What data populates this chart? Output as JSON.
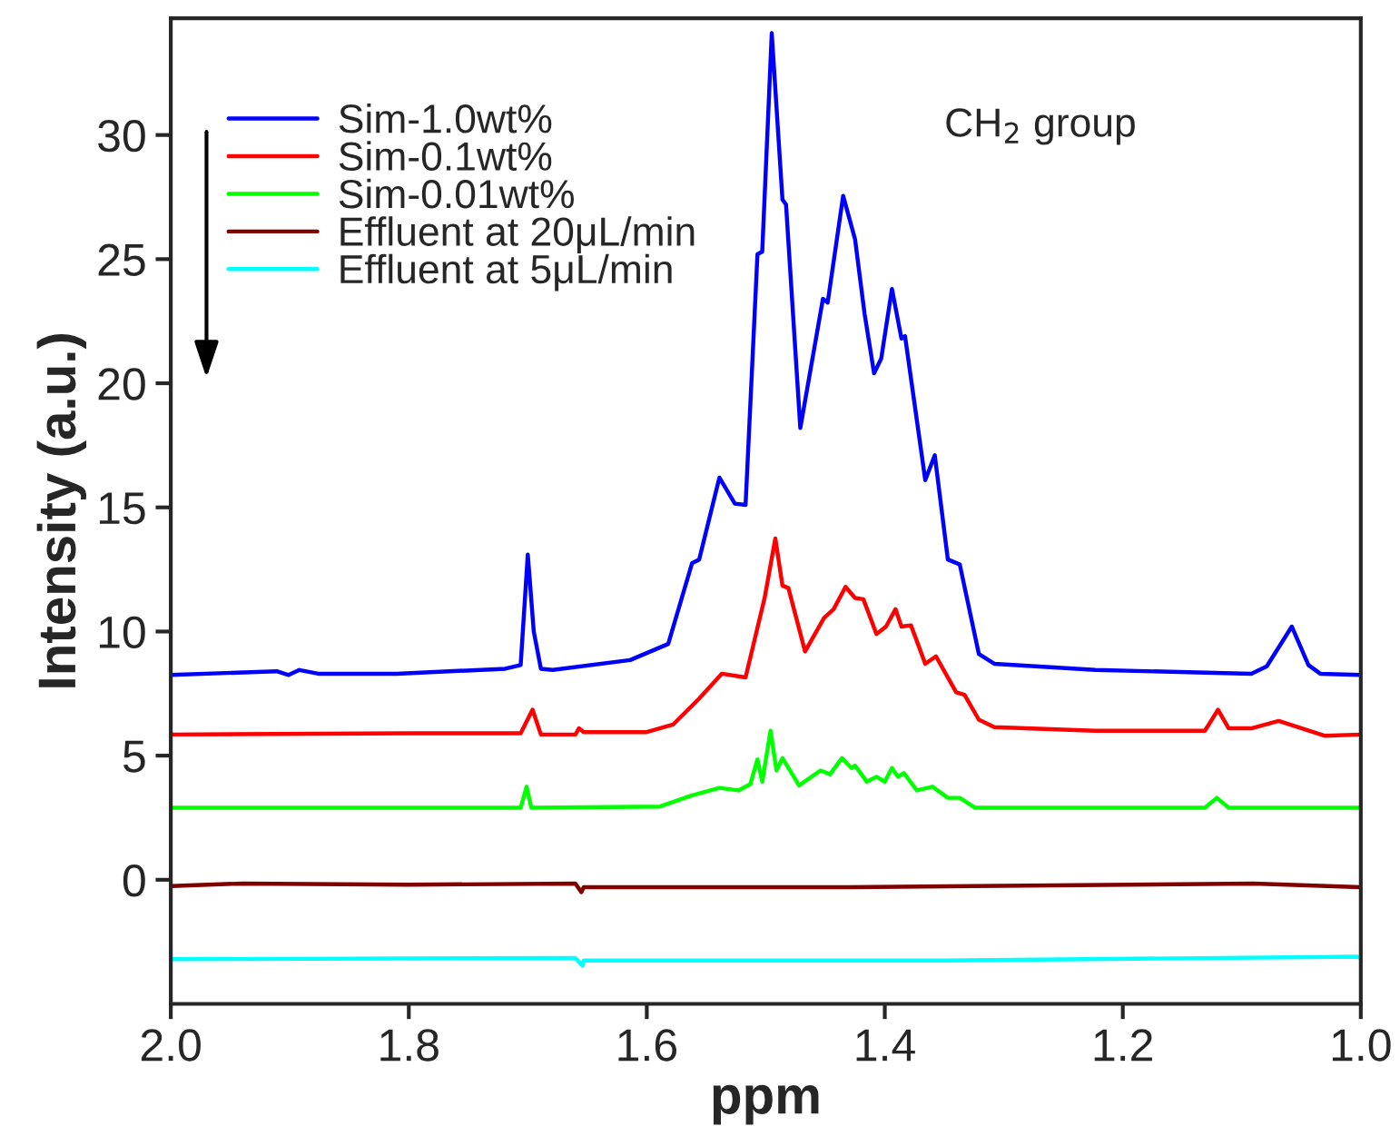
{
  "chart_data": {
    "type": "line",
    "xlabel": "ppm",
    "ylabel": "Intensity (a.u.)",
    "annotations": [
      "CH$_{2}$ group"
    ],
    "xlim": [
      2.0,
      1.0
    ],
    "xticks": [
      {
        "value": 2.0,
        "label": "2.0"
      },
      1.8,
      1.6,
      1.4,
      1.2,
      {
        "value": 1.0,
        "label": "1.0"
      }
    ],
    "ylim": [
      -5,
      34.7
    ],
    "yticks": [
      0,
      5,
      10,
      15,
      20,
      25,
      30
    ],
    "grid": false,
    "legend": "top left",
    "line_style": "solid",
    "marker": "none",
    "series": [
      {
        "name": "Sim-1.0wt%",
        "color": "#0000ff",
        "x": [
          2.0,
          1.911,
          1.901,
          1.892,
          1.876,
          1.81,
          1.719,
          1.706,
          1.7,
          1.695,
          1.689,
          1.679,
          1.614,
          1.582,
          1.562,
          1.556,
          1.539,
          1.526,
          1.517,
          1.507,
          1.503,
          1.495,
          1.486,
          1.483,
          1.471,
          1.452,
          1.448,
          1.435,
          1.425,
          1.417,
          1.409,
          1.403,
          1.394,
          1.386,
          1.383,
          1.366,
          1.358,
          1.347,
          1.337,
          1.321,
          1.308,
          1.223,
          1.092,
          1.079,
          1.058,
          1.044,
          1.034,
          1.0
        ],
        "values": [
          8.25,
          8.4,
          8.25,
          8.45,
          8.3,
          8.3,
          8.5,
          8.65,
          13.1,
          10.0,
          8.5,
          8.45,
          8.85,
          9.5,
          12.75,
          12.9,
          16.2,
          15.15,
          15.1,
          25.2,
          25.3,
          34.1,
          27.4,
          27.2,
          18.2,
          23.4,
          23.25,
          27.55,
          25.8,
          22.8,
          20.4,
          21.0,
          23.8,
          21.8,
          21.9,
          16.1,
          17.1,
          12.9,
          12.7,
          9.1,
          8.7,
          8.45,
          8.3,
          8.6,
          10.2,
          8.65,
          8.3,
          8.25
        ]
      },
      {
        "name": "Sim-0.1wt%",
        "color": "#ff0000",
        "x": [
          2.0,
          1.8,
          1.706,
          1.696,
          1.689,
          1.66,
          1.657,
          1.653,
          1.6,
          1.578,
          1.556,
          1.537,
          1.517,
          1.501,
          1.492,
          1.486,
          1.481,
          1.467,
          1.451,
          1.443,
          1.433,
          1.425,
          1.418,
          1.407,
          1.399,
          1.391,
          1.386,
          1.378,
          1.366,
          1.357,
          1.34,
          1.333,
          1.321,
          1.308,
          1.223,
          1.131,
          1.12,
          1.111,
          1.092,
          1.069,
          1.03,
          1.0
        ],
        "values": [
          5.85,
          5.9,
          5.9,
          6.85,
          5.85,
          5.85,
          6.1,
          5.95,
          5.95,
          6.25,
          7.3,
          8.3,
          8.15,
          11.35,
          13.75,
          11.85,
          11.75,
          9.2,
          10.55,
          10.9,
          11.8,
          11.35,
          11.3,
          9.9,
          10.2,
          10.9,
          10.2,
          10.25,
          8.7,
          9.0,
          7.55,
          7.45,
          6.45,
          6.15,
          6.0,
          6.0,
          6.85,
          6.1,
          6.1,
          6.4,
          5.8,
          5.85
        ]
      },
      {
        "name": "Sim-0.01wt%",
        "color": "#00ff00",
        "x": [
          2.0,
          1.706,
          1.701,
          1.697,
          1.589,
          1.562,
          1.539,
          1.523,
          1.513,
          1.507,
          1.503,
          1.496,
          1.491,
          1.486,
          1.472,
          1.454,
          1.446,
          1.436,
          1.428,
          1.425,
          1.415,
          1.407,
          1.4,
          1.394,
          1.389,
          1.384,
          1.373,
          1.36,
          1.347,
          1.337,
          1.324,
          1.131,
          1.121,
          1.111,
          1.0
        ],
        "values": [
          2.9,
          2.9,
          3.75,
          2.9,
          2.95,
          3.4,
          3.7,
          3.6,
          3.85,
          4.85,
          3.95,
          6.0,
          4.4,
          4.9,
          3.8,
          4.4,
          4.25,
          4.9,
          4.5,
          4.6,
          3.95,
          4.15,
          3.95,
          4.5,
          4.15,
          4.3,
          3.6,
          3.75,
          3.3,
          3.3,
          2.9,
          2.9,
          3.3,
          2.9,
          2.9
        ]
      },
      {
        "name": "Effluent at 20μL/min",
        "color": "#800000",
        "x": [
          2.0,
          1.94,
          1.8,
          1.66,
          1.655,
          1.653,
          1.43,
          1.09,
          1.0
        ],
        "values": [
          -0.25,
          -0.15,
          -0.2,
          -0.15,
          -0.5,
          -0.3,
          -0.3,
          -0.15,
          -0.3
        ]
      },
      {
        "name": "Effluent at 5μL/min",
        "color": "#00ffff",
        "x": [
          2.0,
          1.66,
          1.654,
          1.653,
          1.35,
          1.003,
          1.0
        ],
        "values": [
          -3.2,
          -3.15,
          -3.45,
          -3.25,
          -3.25,
          -3.1,
          -3.15
        ]
      }
    ]
  }
}
